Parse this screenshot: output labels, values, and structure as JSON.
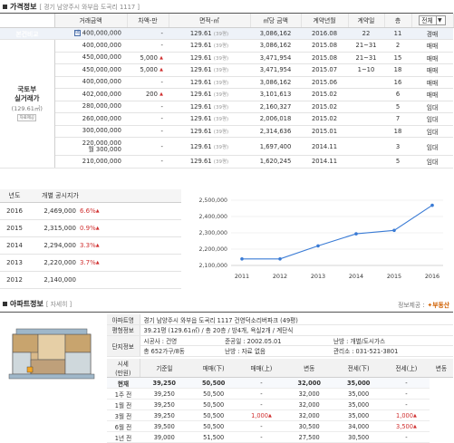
{
  "price_section": {
    "title": "가격정보",
    "address": "[ 경기 남양주시 와부읍 도곡리 1117 ]",
    "headers": [
      "거래금액",
      "차액-만",
      "면적-㎡",
      "㎡당 금액",
      "계약년월",
      "계약일",
      "층"
    ],
    "filter_label": "전체",
    "bonjum_label": "본건비교",
    "bonjum_badge": "매",
    "molit": {
      "line1": "국토부",
      "line2": "실거래가",
      "area": "(129.61㎡)",
      "badge": "자료제공"
    },
    "rows": [
      {
        "price": "400,000,000",
        "diff": "-",
        "area": "129.61",
        "area_py": "(39평)",
        "per_m2": "3,086,162",
        "ym": "2016.08",
        "day": "22",
        "floor": "11",
        "type": "경매",
        "diff_up": false
      },
      {
        "price": "400,000,000",
        "diff": "-",
        "area": "129.61",
        "area_py": "(39평)",
        "per_m2": "3,086,162",
        "ym": "2015.08",
        "day": "21~31",
        "floor": "2",
        "type": "매매",
        "diff_up": false
      },
      {
        "price": "450,000,000",
        "diff": "5,000",
        "area": "129.61",
        "area_py": "(39평)",
        "per_m2": "3,471,954",
        "ym": "2015.08",
        "day": "21~31",
        "floor": "15",
        "type": "매매",
        "diff_up": true
      },
      {
        "price": "450,000,000",
        "diff": "5,000",
        "area": "129.61",
        "area_py": "(39평)",
        "per_m2": "3,471,954",
        "ym": "2015.07",
        "day": "1~10",
        "floor": "18",
        "type": "매매",
        "diff_up": true
      },
      {
        "price": "400,000,000",
        "diff": "-",
        "area": "129.61",
        "area_py": "(39평)",
        "per_m2": "3,086,162",
        "ym": "2015.06",
        "day": "",
        "floor": "16",
        "type": "매매",
        "diff_up": false
      },
      {
        "price": "402,000,000",
        "diff": "200",
        "area": "129.61",
        "area_py": "(39평)",
        "per_m2": "3,101,613",
        "ym": "2015.02",
        "day": "",
        "floor": "6",
        "type": "매매",
        "diff_up": true
      },
      {
        "price": "280,000,000",
        "diff": "-",
        "area": "129.61",
        "area_py": "(39평)",
        "per_m2": "2,160,327",
        "ym": "2015.02",
        "day": "",
        "floor": "5",
        "type": "임대",
        "diff_up": false
      },
      {
        "price": "260,000,000",
        "diff": "-",
        "area": "129.61",
        "area_py": "(39평)",
        "per_m2": "2,006,018",
        "ym": "2015.02",
        "day": "",
        "floor": "7",
        "type": "임대",
        "diff_up": false
      },
      {
        "price": "300,000,000",
        "diff": "-",
        "area": "129.61",
        "area_py": "(39평)",
        "per_m2": "2,314,636",
        "ym": "2015.01",
        "day": "",
        "floor": "18",
        "type": "임대",
        "diff_up": false
      },
      {
        "price": "220,000,000\n월 300,000",
        "diff": "-",
        "area": "129.61",
        "area_py": "(39평)",
        "per_m2": "1,697,400",
        "ym": "2014.11",
        "day": "",
        "floor": "3",
        "type": "임대",
        "diff_up": false
      },
      {
        "price": "210,000,000",
        "diff": "-",
        "area": "129.61",
        "area_py": "(39평)",
        "per_m2": "1,620,245",
        "ym": "2014.11",
        "day": "",
        "floor": "5",
        "type": "임대",
        "diff_up": false
      }
    ]
  },
  "gongsi": {
    "headers": [
      "년도",
      "개별 공시지가"
    ],
    "rows": [
      {
        "year": "2016",
        "value": "2,469,000",
        "pct": "6.6%"
      },
      {
        "year": "2015",
        "value": "2,315,000",
        "pct": "0.9%"
      },
      {
        "year": "2014",
        "value": "2,294,000",
        "pct": "3.3%"
      },
      {
        "year": "2013",
        "value": "2,220,000",
        "pct": "3.7%"
      },
      {
        "year": "2012",
        "value": "2,140,000",
        "pct": ""
      }
    ]
  },
  "chart_data": {
    "type": "line",
    "x": [
      "2011",
      "2012",
      "2013",
      "2014",
      "2015",
      "2016"
    ],
    "series": [
      {
        "values": [
          2140000,
          2140000,
          2220000,
          2294000,
          2315000,
          2469000
        ]
      }
    ],
    "yticks": [
      "2,100,000",
      "2,200,000",
      "2,300,000",
      "2,400,000",
      "2,500,000"
    ],
    "ylim": [
      2100000,
      2500000
    ],
    "color": "#3a7bd5",
    "grid": true
  },
  "apt_section": {
    "title": "아파트정보",
    "link": "[ 자세히 ]",
    "provider": "정보제공 :",
    "provider_logo": "부동산",
    "info": [
      {
        "label": "아파트명",
        "value": "경기 남양주시 와부읍 도곡리 1117 건영덕소리버파크 (49평)"
      },
      {
        "label": "평형정보",
        "value": "39.21평 (129.61㎡) / 총 20층 / 방4개, 욕실2개 / 계단식"
      },
      {
        "label": "단지정보",
        "value": "시공사 : 건영",
        "v2": "준공일 : 2002.05.01",
        "v3": "난방 : 개별/도시가스"
      },
      {
        "label": "",
        "value": "총 652가구/8동",
        "v2": "난방 : 자료 없음",
        "v3": "관리소 : 031-521-3801"
      }
    ],
    "side_label": "시세\n(만원)",
    "market_headers": [
      "기준일",
      "매매(下)",
      "매매(上)",
      "변동",
      "전세(下)",
      "전세(上)",
      "변동"
    ],
    "market_rows": [
      {
        "date": "현재",
        "s_low": "39,250",
        "s_high": "50,500",
        "s_chg": "-",
        "j_low": "32,000",
        "j_high": "35,000",
        "j_chg": "-",
        "bold": true
      },
      {
        "date": "1주 전",
        "s_low": "39,250",
        "s_high": "50,500",
        "s_chg": "-",
        "j_low": "32,000",
        "j_high": "35,000",
        "j_chg": "-"
      },
      {
        "date": "1월 전",
        "s_low": "39,250",
        "s_high": "50,500",
        "s_chg": "-",
        "j_low": "32,000",
        "j_high": "35,000",
        "j_chg": "-"
      },
      {
        "date": "3월 전",
        "s_low": "39,250",
        "s_high": "50,500",
        "s_chg": "1,000",
        "j_low": "32,000",
        "j_high": "35,000",
        "j_chg": "1,000"
      },
      {
        "date": "6월 전",
        "s_low": "39,500",
        "s_high": "50,500",
        "s_chg": "-",
        "j_low": "30,500",
        "j_high": "34,000",
        "j_chg": "3,500"
      },
      {
        "date": "1년 전",
        "s_low": "39,000",
        "s_high": "51,500",
        "s_chg": "-",
        "j_low": "27,500",
        "j_high": "30,500",
        "j_chg": "-"
      }
    ]
  }
}
